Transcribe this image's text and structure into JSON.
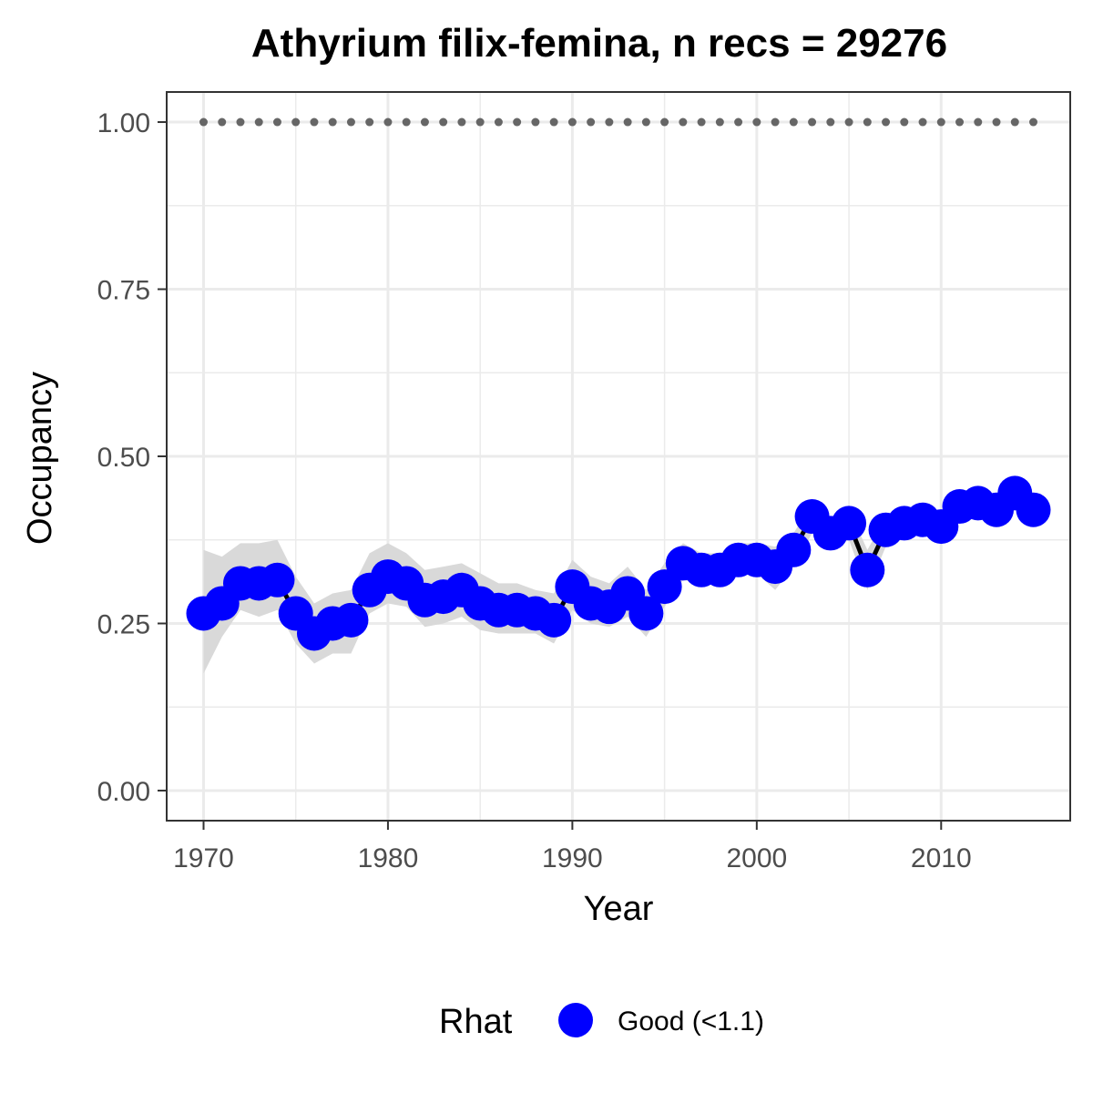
{
  "chart_data": {
    "type": "line",
    "title": "Athyrium filix-femina, n recs = 29276",
    "xlabel": "Year",
    "ylabel": "Occupancy",
    "xlim": [
      1968,
      2017
    ],
    "ylim": [
      -0.045,
      1.045
    ],
    "x_ticks": [
      1970,
      1980,
      1990,
      2000,
      2010
    ],
    "x_tick_labels": [
      "1970",
      "1980",
      "1990",
      "2000",
      "2010"
    ],
    "y_ticks": [
      0,
      0.25,
      0.5,
      0.75,
      1.0
    ],
    "y_tick_labels": [
      "0.00",
      "0.25",
      "0.50",
      "0.75",
      "1.00"
    ],
    "grid": true,
    "legend": {
      "position": "bottom",
      "title": "Rhat",
      "items": [
        {
          "label": "Good (<1.1)",
          "color": "#0000ff"
        }
      ]
    },
    "colors": {
      "points": "#0000ff",
      "line": "#000000",
      "ribbon": "#d9d9d9",
      "reference": "#666666",
      "grid": "#ebebeb",
      "panel_border": "#333333"
    },
    "reference_line": {
      "y": 1.0,
      "style": "dotted"
    },
    "x": [
      1970,
      1971,
      1972,
      1973,
      1974,
      1975,
      1976,
      1977,
      1978,
      1979,
      1980,
      1981,
      1982,
      1983,
      1984,
      1985,
      1986,
      1987,
      1988,
      1989,
      1990,
      1991,
      1992,
      1993,
      1994,
      1995,
      1996,
      1997,
      1998,
      1999,
      2000,
      2001,
      2002,
      2003,
      2004,
      2005,
      2006,
      2007,
      2008,
      2009,
      2010,
      2011,
      2012,
      2013,
      2014,
      2015
    ],
    "series": [
      {
        "values": [
          0.265,
          0.28,
          0.31,
          0.31,
          0.315,
          0.265,
          0.235,
          0.25,
          0.255,
          0.3,
          0.32,
          0.31,
          0.285,
          0.29,
          0.3,
          0.28,
          0.27,
          0.27,
          0.265,
          0.255,
          0.305,
          0.28,
          0.275,
          0.295,
          0.265,
          0.305,
          0.34,
          0.33,
          0.33,
          0.345,
          0.345,
          0.335,
          0.36,
          0.41,
          0.385,
          0.4,
          0.33,
          0.39,
          0.4,
          0.405,
          0.395,
          0.425,
          0.43,
          0.42,
          0.445,
          0.42
        ],
        "lower": [
          0.175,
          0.23,
          0.27,
          0.26,
          0.27,
          0.22,
          0.19,
          0.205,
          0.205,
          0.265,
          0.28,
          0.275,
          0.245,
          0.25,
          0.26,
          0.24,
          0.235,
          0.235,
          0.235,
          0.22,
          0.27,
          0.25,
          0.245,
          0.26,
          0.23,
          0.275,
          0.315,
          0.31,
          0.31,
          0.325,
          0.325,
          0.3,
          0.335,
          0.385,
          0.36,
          0.375,
          0.3,
          0.365,
          0.38,
          0.385,
          0.38,
          0.41,
          0.415,
          0.405,
          0.425,
          0.405
        ],
        "upper": [
          0.36,
          0.35,
          0.37,
          0.37,
          0.375,
          0.32,
          0.28,
          0.295,
          0.3,
          0.355,
          0.37,
          0.355,
          0.33,
          0.335,
          0.34,
          0.325,
          0.31,
          0.31,
          0.3,
          0.295,
          0.345,
          0.32,
          0.31,
          0.335,
          0.3,
          0.34,
          0.37,
          0.355,
          0.355,
          0.37,
          0.37,
          0.365,
          0.385,
          0.43,
          0.41,
          0.42,
          0.36,
          0.41,
          0.42,
          0.425,
          0.41,
          0.44,
          0.445,
          0.435,
          0.46,
          0.435
        ]
      }
    ]
  }
}
